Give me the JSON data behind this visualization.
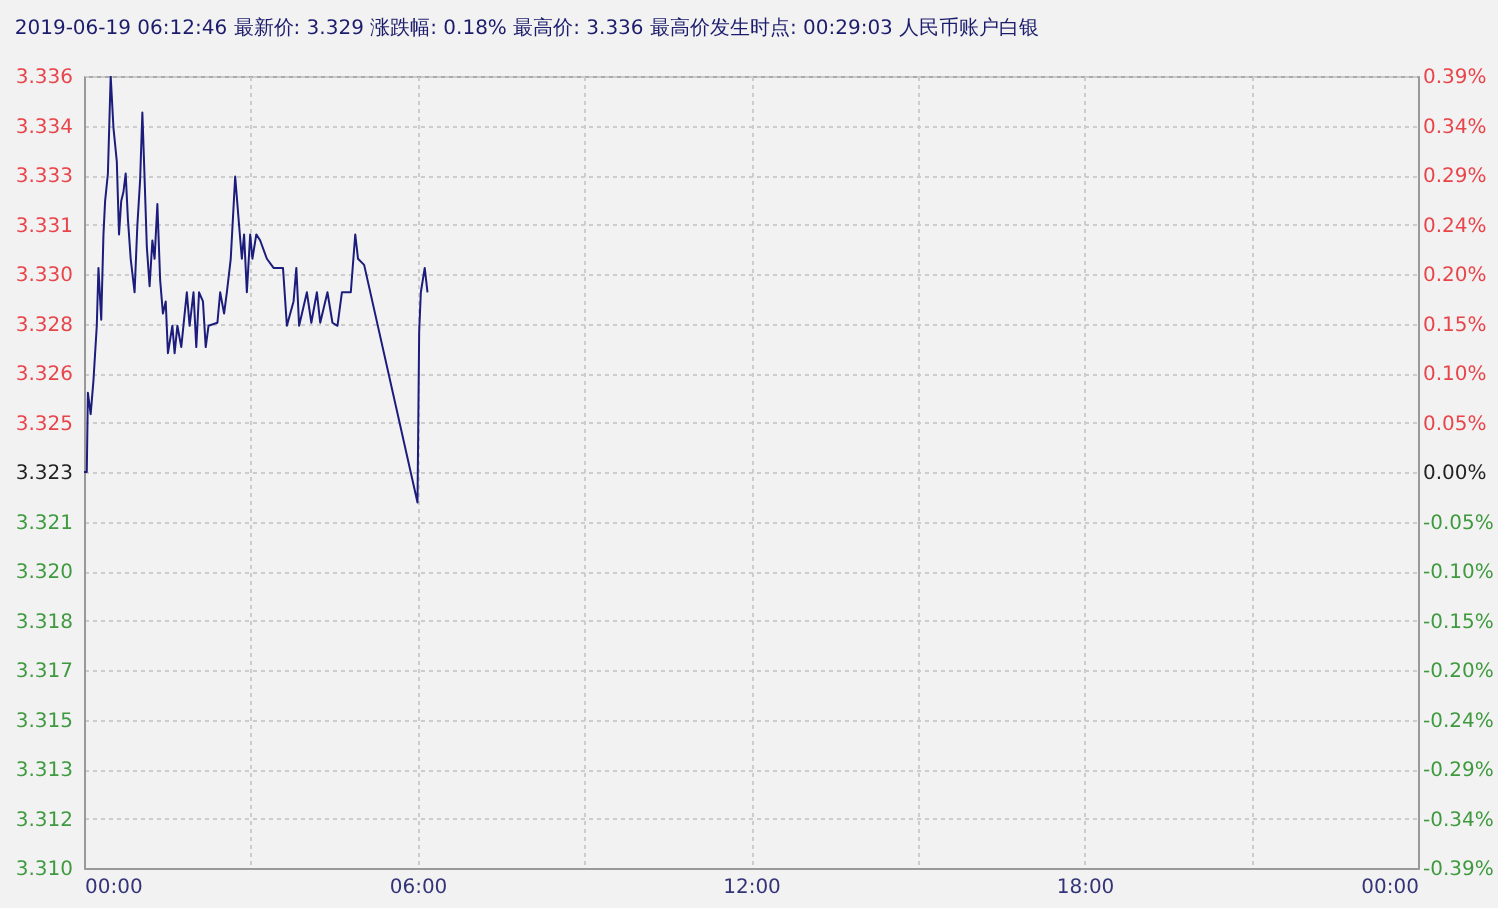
{
  "chart_data": {
    "type": "line",
    "title": "2019-06-19 06:12:46   最新价: 3.329   涨跌幅: 0.18%   最高价: 3.336   最高价发生时点: 00:29:03   人民币账户白银",
    "x": [
      0,
      0.05,
      0.07,
      0.12,
      0.17,
      0.23,
      0.26,
      0.31,
      0.35,
      0.38,
      0.43,
      0.48,
      0.53,
      0.59,
      0.63,
      0.67,
      0.71,
      0.75,
      0.79,
      0.84,
      0.91,
      0.96,
      1.01,
      1.05,
      1.08,
      1.13,
      1.18,
      1.23,
      1.27,
      1.32,
      1.37,
      1.42,
      1.47,
      1.51,
      1.59,
      1.63,
      1.68,
      1.75,
      1.8,
      1.85,
      1.9,
      1.97,
      2.02,
      2.07,
      2.14,
      2.19,
      2.24,
      2.4,
      2.45,
      2.52,
      2.57,
      2.64,
      2.72,
      2.79,
      2.84,
      2.88,
      2.93,
      2.99,
      3.03,
      3.1,
      3.17,
      3.29,
      3.41,
      3.58,
      3.65,
      3.77,
      3.82,
      3.87,
      4.01,
      4.09,
      4.19,
      4.25,
      4.38,
      4.47,
      4.56,
      4.64,
      4.8,
      4.88,
      4.93,
      5.04,
      6.0,
      6.03,
      6.06,
      6.13,
      6.18
    ],
    "series": [
      {
        "color": "#1c1c7c",
        "values": [
          3.323,
          3.323,
          3.3256,
          3.3249,
          3.326,
          3.3278,
          3.3297,
          3.328,
          3.3308,
          3.3319,
          3.3328,
          3.336,
          3.3343,
          3.3332,
          3.3308,
          3.3319,
          3.3322,
          3.3328,
          3.3313,
          3.33,
          3.3289,
          3.3311,
          3.3326,
          3.3348,
          3.3332,
          3.3304,
          3.3291,
          3.3306,
          3.33,
          3.3318,
          3.3293,
          3.3282,
          3.3286,
          3.3269,
          3.3278,
          3.3269,
          3.3278,
          3.3271,
          3.328,
          3.3289,
          3.3278,
          3.3289,
          3.3271,
          3.3289,
          3.3286,
          3.3271,
          3.3278,
          3.3279,
          3.3289,
          3.3282,
          3.3289,
          3.33,
          3.3327,
          3.3311,
          3.33,
          3.3308,
          3.3289,
          3.3308,
          3.33,
          3.3308,
          3.3306,
          3.33,
          3.3297,
          3.3297,
          3.3278,
          3.3286,
          3.3297,
          3.3278,
          3.3289,
          3.3279,
          3.3289,
          3.3279,
          3.3289,
          3.3279,
          3.3278,
          3.3289,
          3.3289,
          3.3308,
          3.33,
          3.3298,
          3.322,
          3.3276,
          3.3289,
          3.3297,
          3.3289
        ]
      }
    ],
    "xlim": [
      0,
      24
    ],
    "xticks": [
      {
        "value": 0,
        "label": "00:00"
      },
      {
        "value": 3,
        "label": null
      },
      {
        "value": 6,
        "label": "06:00"
      },
      {
        "value": 9,
        "label": null
      },
      {
        "value": 12,
        "label": "12:00"
      },
      {
        "value": 15,
        "label": null
      },
      {
        "value": 18,
        "label": "18:00"
      },
      {
        "value": 21,
        "label": null
      },
      {
        "value": 24,
        "label": "00:00"
      }
    ],
    "ylim": [
      3.31,
      3.336
    ],
    "yticks": [
      {
        "value": 3.31,
        "label": "3.310"
      },
      {
        "value": 3.311625,
        "label": "3.312"
      },
      {
        "value": 3.31325,
        "label": "3.313"
      },
      {
        "value": 3.314875,
        "label": "3.315"
      },
      {
        "value": 3.3165,
        "label": "3.317"
      },
      {
        "value": 3.318125,
        "label": "3.318"
      },
      {
        "value": 3.31975,
        "label": "3.320"
      },
      {
        "value": 3.321375,
        "label": "3.321"
      },
      {
        "value": 3.323,
        "label": "3.323"
      },
      {
        "value": 3.324625,
        "label": "3.325"
      },
      {
        "value": 3.32625,
        "label": "3.326"
      },
      {
        "value": 3.327875,
        "label": "3.328"
      },
      {
        "value": 3.3295,
        "label": "3.330"
      },
      {
        "value": 3.331125,
        "label": "3.331"
      },
      {
        "value": 3.33275,
        "label": "3.333"
      },
      {
        "value": 3.334375,
        "label": "3.334"
      },
      {
        "value": 3.336,
        "label": "3.336"
      }
    ],
    "y2lim": [
      -0.39,
      0.39
    ],
    "y2ticks": [
      {
        "value": -0.39,
        "label": "-0.39%"
      },
      {
        "value": -0.34125,
        "label": "-0.34%"
      },
      {
        "value": -0.2925,
        "label": "-0.29%"
      },
      {
        "value": -0.24375,
        "label": "-0.24%"
      },
      {
        "value": -0.195,
        "label": "-0.20%"
      },
      {
        "value": -0.14625,
        "label": "-0.15%"
      },
      {
        "value": -0.0975,
        "label": "-0.10%"
      },
      {
        "value": -0.04875,
        "label": "-0.05%"
      },
      {
        "value": 0,
        "label": "0.00%"
      },
      {
        "value": 0.04875,
        "label": "0.05%"
      },
      {
        "value": 0.0975,
        "label": "0.10%"
      },
      {
        "value": 0.14625,
        "label": "0.15%"
      },
      {
        "value": 0.195,
        "label": "0.20%"
      },
      {
        "value": 0.24375,
        "label": "0.24%"
      },
      {
        "value": 0.2925,
        "label": "0.29%"
      },
      {
        "value": 0.34125,
        "label": "0.34%"
      },
      {
        "value": 0.39,
        "label": "0.39%"
      }
    ],
    "grid": true
  }
}
